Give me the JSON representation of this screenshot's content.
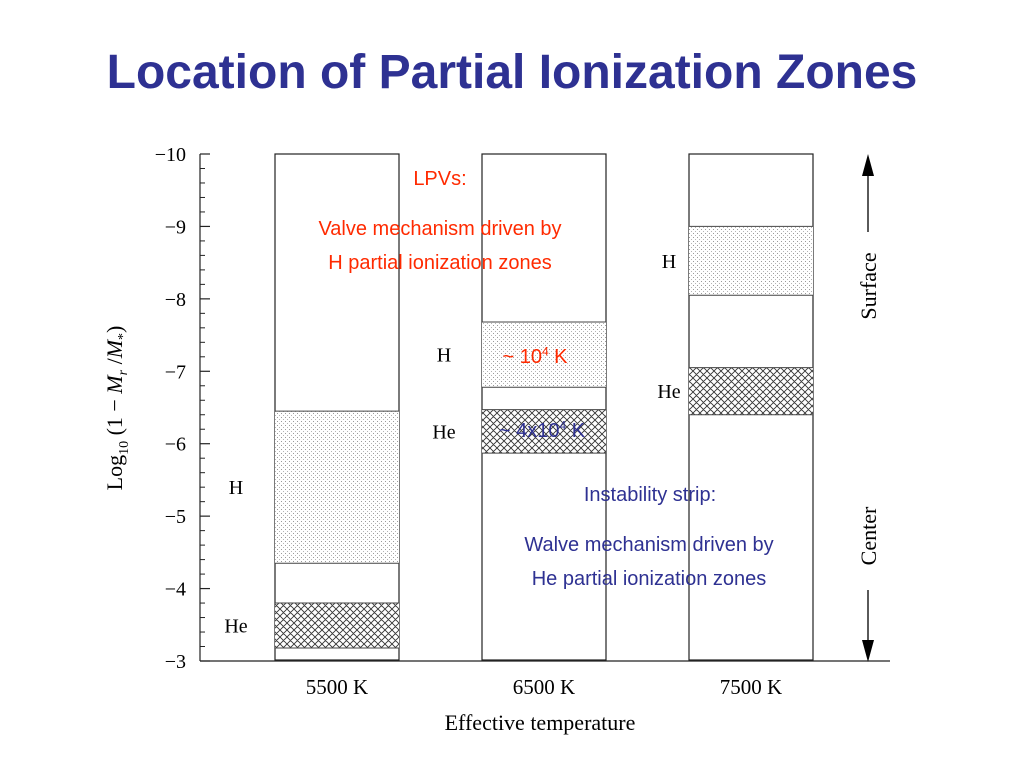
{
  "slide": {
    "title": "Location of Partial Ionization Zones"
  },
  "chart_data": {
    "type": "stacked-bar",
    "title": "",
    "xlabel": "Effective temperature",
    "ylabel_prefix": "Log",
    "ylabel_sub10": "10",
    "ylabel_mid": " (1 − ",
    "ylabel_Mr": "M",
    "ylabel_r": "r",
    "ylabel_slash": " /",
    "ylabel_Ms": "M",
    "ylabel_star": "*",
    "ylabel_close": ")",
    "ylim": [
      -10,
      -3
    ],
    "yticks": [
      -10,
      -9,
      -8,
      -7,
      -6,
      -5,
      -4,
      -3
    ],
    "ytick_labels": [
      "−10",
      "−9",
      "−8",
      "−7",
      "−6",
      "−5",
      "−4",
      "−3"
    ],
    "side_arrow": {
      "top_label": "Surface",
      "bottom_label": "Center"
    },
    "categories": [
      "5500 K",
      "6500 K",
      "7500 K"
    ],
    "columns": [
      {
        "label": "5500 K",
        "zones": [
          {
            "name": "H",
            "from": -6.45,
            "to": -4.35,
            "pattern": "dots"
          },
          {
            "name": "He",
            "from": -3.8,
            "to": -3.18,
            "pattern": "crosshatch"
          }
        ]
      },
      {
        "label": "6500 K",
        "zones": [
          {
            "name": "H",
            "from": -7.68,
            "to": -6.78,
            "pattern": "dots"
          },
          {
            "name": "He",
            "from": -6.47,
            "to": -5.87,
            "pattern": "crosshatch"
          }
        ]
      },
      {
        "label": "7500 K",
        "zones": [
          {
            "name": "H",
            "from": -9.0,
            "to": -8.05,
            "pattern": "dots"
          },
          {
            "name": "He",
            "from": -7.05,
            "to": -6.4,
            "pattern": "crosshatch"
          }
        ]
      }
    ]
  },
  "annotations": {
    "lpv_heading": "LPVs:",
    "lpv_line1": "Valve mechanism driven by",
    "lpv_line2": "H partial ionization zones",
    "h_temp_prefix": "~ 10",
    "h_temp_exp": "4",
    "h_temp_suffix": " K",
    "he_temp_prefix": "~ 4x10",
    "he_temp_exp": "4",
    "he_temp_suffix": " K",
    "strip_heading": "Instability strip:",
    "strip_line1": "Walve mechanism driven by",
    "strip_line2": "He partial ionization zones",
    "colors": {
      "red": "#ff2a00",
      "blue": "#2e3192"
    }
  }
}
